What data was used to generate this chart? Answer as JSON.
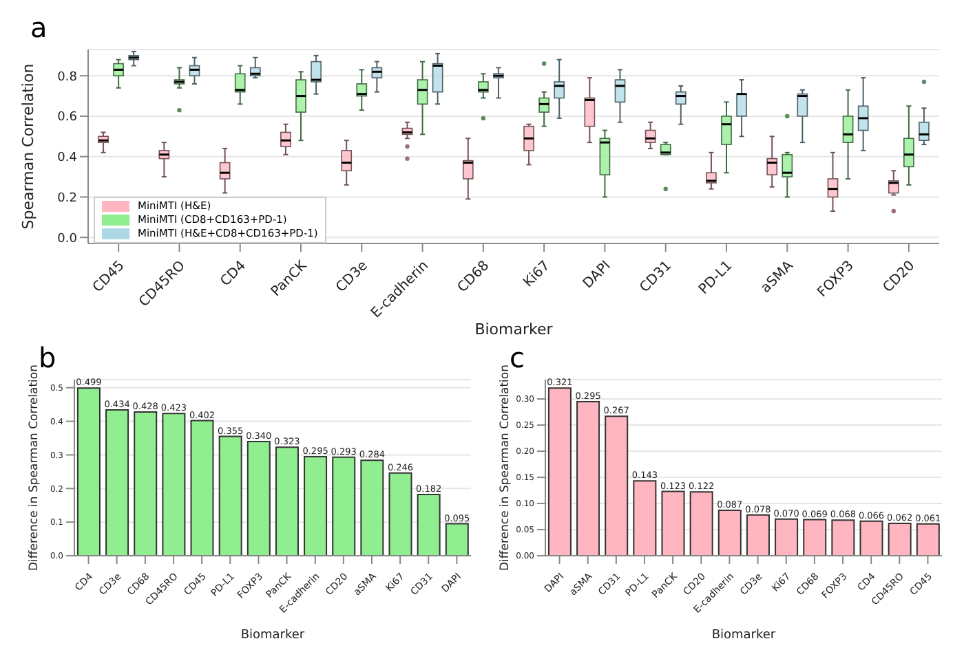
{
  "chart_data": [
    {
      "type": "box",
      "title": "a",
      "xlabel": "Biomarker",
      "ylabel": "Spearman Correlation",
      "categories": [
        "CD45",
        "CD45RO",
        "CD4",
        "PanCK",
        "CD3e",
        "E-cadherin",
        "CD68",
        "Ki67",
        "DAPI",
        "CD31",
        "PD-L1",
        "aSMA",
        "FOXP3",
        "CD20"
      ],
      "ylim": [
        -0.03,
        0.93
      ],
      "yticks": [
        {
          "value": 0,
          "label": "0.0"
        },
        0.2,
        0.4,
        0.6,
        0.8
      ],
      "grid": "y",
      "legend": "bottom left",
      "series": [
        {
          "name": "MiniMTI (H&E)",
          "color": "#ffb6c1",
          "boxes": [
            {
              "low": 0.42,
              "q1": 0.47,
              "median": 0.48,
              "q3": 0.5,
              "high": 0.52
            },
            {
              "low": 0.3,
              "q1": 0.39,
              "median": 0.41,
              "q3": 0.43,
              "high": 0.47
            },
            {
              "low": 0.22,
              "q1": 0.29,
              "median": 0.32,
              "q3": 0.37,
              "high": 0.44
            },
            {
              "low": 0.41,
              "q1": 0.45,
              "median": 0.48,
              "q3": 0.52,
              "high": 0.56
            },
            {
              "low": 0.26,
              "q1": 0.33,
              "median": 0.37,
              "q3": 0.43,
              "high": 0.48
            },
            {
              "low": 0.49,
              "q1": 0.51,
              "median": 0.52,
              "q3": 0.54,
              "high": 0.57,
              "outliers": [
                0.39,
                0.45
              ]
            },
            {
              "low": 0.19,
              "q1": 0.29,
              "median": 0.37,
              "q3": 0.38,
              "high": 0.49
            },
            {
              "low": 0.36,
              "q1": 0.43,
              "median": 0.49,
              "q3": 0.55,
              "high": 0.56
            },
            {
              "low": 0.47,
              "q1": 0.55,
              "median": 0.68,
              "q3": 0.69,
              "high": 0.79
            },
            {
              "low": 0.44,
              "q1": 0.47,
              "median": 0.49,
              "q3": 0.53,
              "high": 0.57
            },
            {
              "low": 0.24,
              "q1": 0.27,
              "median": 0.28,
              "q3": 0.32,
              "high": 0.42
            },
            {
              "low": 0.25,
              "q1": 0.31,
              "median": 0.37,
              "q3": 0.39,
              "high": 0.5
            },
            {
              "low": 0.13,
              "q1": 0.2,
              "median": 0.24,
              "q3": 0.29,
              "high": 0.42
            },
            {
              "low": 0.21,
              "q1": 0.22,
              "median": 0.27,
              "q3": 0.28,
              "high": 0.33,
              "outliers": [
                0.13
              ]
            }
          ]
        },
        {
          "name": "MiniMTI (CD8+CD163+PD-1)",
          "color": "#90ee90",
          "boxes": [
            {
              "low": 0.74,
              "q1": 0.8,
              "median": 0.83,
              "q3": 0.86,
              "high": 0.88
            },
            {
              "low": 0.74,
              "q1": 0.76,
              "median": 0.77,
              "q3": 0.78,
              "high": 0.84,
              "outliers": [
                0.63
              ]
            },
            {
              "low": 0.66,
              "q1": 0.72,
              "median": 0.73,
              "q3": 0.81,
              "high": 0.85
            },
            {
              "low": 0.48,
              "q1": 0.62,
              "median": 0.7,
              "q3": 0.78,
              "high": 0.82
            },
            {
              "low": 0.63,
              "q1": 0.7,
              "median": 0.71,
              "q3": 0.76,
              "high": 0.83
            },
            {
              "low": 0.51,
              "q1": 0.66,
              "median": 0.73,
              "q3": 0.78,
              "high": 0.87
            },
            {
              "low": 0.69,
              "q1": 0.72,
              "median": 0.73,
              "q3": 0.77,
              "high": 0.81,
              "outliers": [
                0.59
              ]
            },
            {
              "low": 0.55,
              "q1": 0.62,
              "median": 0.66,
              "q3": 0.69,
              "high": 0.72,
              "outliers": [
                0.86
              ]
            },
            {
              "low": 0.2,
              "q1": 0.31,
              "median": 0.47,
              "q3": 0.49,
              "high": 0.53
            },
            {
              "low": 0.41,
              "q1": 0.41,
              "median": 0.42,
              "q3": 0.46,
              "high": 0.47,
              "outliers": [
                0.24
              ]
            },
            {
              "low": 0.32,
              "q1": 0.46,
              "median": 0.56,
              "q3": 0.6,
              "high": 0.67
            },
            {
              "low": 0.2,
              "q1": 0.3,
              "median": 0.32,
              "q3": 0.41,
              "high": 0.42,
              "outliers": [
                0.6
              ]
            },
            {
              "low": 0.29,
              "q1": 0.47,
              "median": 0.51,
              "q3": 0.6,
              "high": 0.73
            },
            {
              "low": 0.26,
              "q1": 0.35,
              "median": 0.41,
              "q3": 0.49,
              "high": 0.65
            }
          ]
        },
        {
          "name": "MiniMTI (H&E+CD8+CD163+PD-1)",
          "color": "#add8e6",
          "boxes": [
            {
              "low": 0.85,
              "q1": 0.88,
              "median": 0.89,
              "q3": 0.9,
              "high": 0.92
            },
            {
              "low": 0.76,
              "q1": 0.8,
              "median": 0.83,
              "q3": 0.85,
              "high": 0.89
            },
            {
              "low": 0.79,
              "q1": 0.8,
              "median": 0.81,
              "q3": 0.84,
              "high": 0.89
            },
            {
              "low": 0.71,
              "q1": 0.77,
              "median": 0.78,
              "q3": 0.87,
              "high": 0.9
            },
            {
              "low": 0.72,
              "q1": 0.79,
              "median": 0.82,
              "q3": 0.84,
              "high": 0.87
            },
            {
              "low": 0.66,
              "q1": 0.72,
              "median": 0.85,
              "q3": 0.86,
              "high": 0.91
            },
            {
              "low": 0.69,
              "q1": 0.79,
              "median": 0.8,
              "q3": 0.81,
              "high": 0.84
            },
            {
              "low": 0.59,
              "q1": 0.69,
              "median": 0.75,
              "q3": 0.77,
              "high": 0.88
            },
            {
              "low": 0.57,
              "q1": 0.67,
              "median": 0.75,
              "q3": 0.78,
              "high": 0.83
            },
            {
              "low": 0.56,
              "q1": 0.66,
              "median": 0.7,
              "q3": 0.72,
              "high": 0.75
            },
            {
              "low": 0.5,
              "q1": 0.6,
              "median": 0.71,
              "q3": 0.71,
              "high": 0.78
            },
            {
              "low": 0.47,
              "q1": 0.6,
              "median": 0.7,
              "q3": 0.71,
              "high": 0.73
            },
            {
              "low": 0.43,
              "q1": 0.53,
              "median": 0.59,
              "q3": 0.65,
              "high": 0.79
            },
            {
              "low": 0.46,
              "q1": 0.48,
              "median": 0.51,
              "q3": 0.57,
              "high": 0.64,
              "outliers": [
                0.77
              ]
            }
          ]
        }
      ]
    },
    {
      "type": "bar",
      "title": "b",
      "xlabel": "Biomarker",
      "ylabel": "Difference in Spearman Correlation",
      "categories": [
        "CD4",
        "CD3e",
        "CD68",
        "CD45RO",
        "CD45",
        "PD-L1",
        "FOXP3",
        "PanCK",
        "E-cadherin",
        "CD20",
        "aSMA",
        "Ki67",
        "CD31",
        "DAPI"
      ],
      "values": [
        0.499,
        0.434,
        0.428,
        0.423,
        0.402,
        0.355,
        0.34,
        0.323,
        0.295,
        0.293,
        0.284,
        0.246,
        0.182,
        0.095
      ],
      "value_labels": [
        "0.499",
        "0.434",
        "0.428",
        "0.423",
        "0.402",
        "0.355",
        "0.340",
        "0.323",
        "0.295",
        "0.293",
        "0.284",
        "0.246",
        "0.182",
        "0.095"
      ],
      "color": "#90ee90",
      "ylim": [
        0,
        0.524
      ],
      "yticks": [
        {
          "value": 0,
          "label": "0.0"
        },
        0.1,
        0.2,
        0.3,
        0.4,
        0.5
      ],
      "grid": "y"
    },
    {
      "type": "bar",
      "title": "c",
      "xlabel": "Biomarker",
      "ylabel": "Difference in Spearman Correlation",
      "categories": [
        "DAPI",
        "aSMA",
        "CD31",
        "PD-L1",
        "PanCK",
        "CD20",
        "E-cadherin",
        "CD3e",
        "Ki67",
        "CD68",
        "FOXP3",
        "CD4",
        "CD45RO",
        "CD45"
      ],
      "values": [
        0.321,
        0.295,
        0.267,
        0.143,
        0.123,
        0.122,
        0.087,
        0.078,
        0.07,
        0.069,
        0.068,
        0.066,
        0.062,
        0.061
      ],
      "value_labels": [
        "0.321",
        "0.295",
        "0.267",
        "0.143",
        "0.123",
        "0.122",
        "0.087",
        "0.078",
        "0.070",
        "0.069",
        "0.068",
        "0.066",
        "0.062",
        "0.061"
      ],
      "color": "#ffb6c1",
      "ylim": [
        0,
        0.337
      ],
      "yticks": [
        {
          "value": 0,
          "label": "0.00"
        },
        0.05,
        {
          "value": 0.1,
          "label": "0.10"
        },
        0.15,
        {
          "value": 0.2,
          "label": "0.20"
        },
        0.25,
        {
          "value": 0.3,
          "label": "0.30"
        }
      ],
      "grid": "y"
    }
  ]
}
